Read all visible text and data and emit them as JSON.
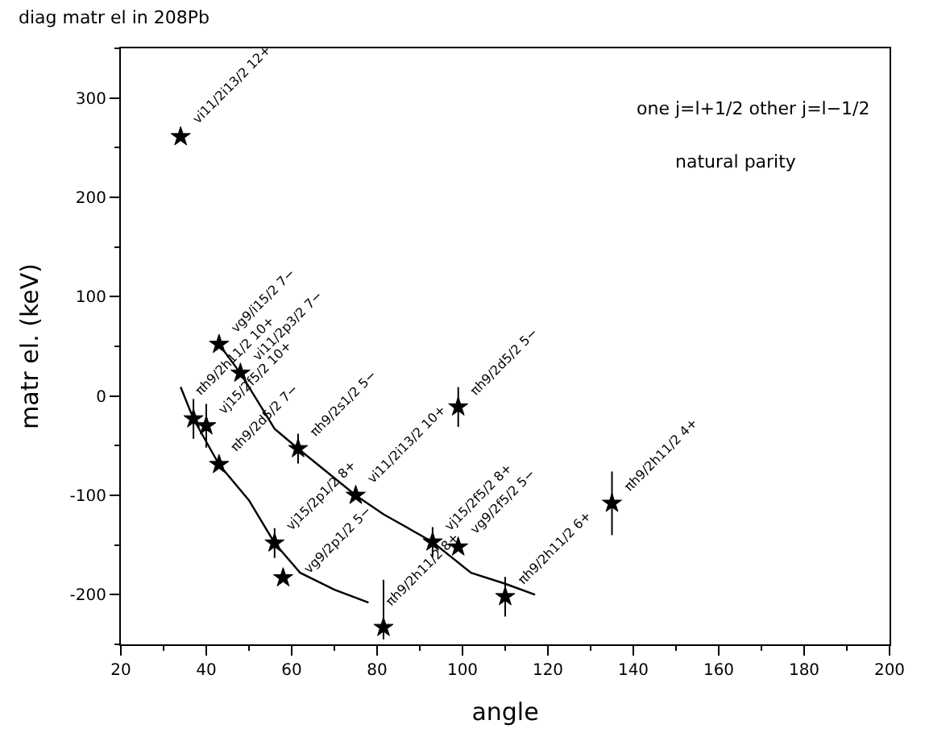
{
  "chart_data": {
    "type": "scatter",
    "title": "diag matr el in 208Pb",
    "xlabel": "angle",
    "ylabel": "matr el. (keV)",
    "xlim": [
      20,
      200
    ],
    "xticks": [
      20,
      40,
      60,
      80,
      100,
      120,
      140,
      160,
      180,
      200
    ],
    "ylim": [
      -250,
      350
    ],
    "yticks": [
      -200,
      -100,
      0,
      100,
      200,
      300
    ],
    "series": [
      {
        "marker": "star",
        "color": "#000000",
        "x": [
          34,
          43,
          37,
          48,
          40,
          43,
          61.5,
          75,
          56,
          58,
          81.5,
          93,
          99,
          110,
          135,
          99
        ],
        "values": [
          261,
          52,
          -23,
          23,
          -30,
          -69,
          -53,
          -100,
          -148,
          -183,
          -233,
          -147,
          -152,
          -202,
          -108,
          -11
        ],
        "errors": [
          null,
          null,
          20,
          null,
          22,
          null,
          15,
          null,
          15,
          null,
          [
            -245,
            -185
          ],
          15,
          null,
          20,
          32,
          20
        ]
      },
      {
        "type": "line",
        "marker": "none",
        "color": "#000000",
        "x": [
          34,
          37,
          43,
          50,
          56,
          62,
          70,
          78
        ],
        "values": [
          9,
          -23,
          -69,
          -105,
          -148,
          -178,
          -195,
          -208
        ]
      },
      {
        "type": "line",
        "marker": "none",
        "color": "#000000",
        "x": [
          43,
          48,
          56,
          61.5,
          75,
          81.5,
          93,
          102,
          110,
          117
        ],
        "values": [
          52,
          23,
          -33,
          -53,
          -100,
          -119,
          -147,
          -178,
          -189,
          -200
        ]
      }
    ],
    "annotations": [
      {
        "text": "vi11/2i13/2 12+",
        "x": 34,
        "y": 261
      },
      {
        "text": "vg9/i15/2 7−",
        "x": 43,
        "y": 52
      },
      {
        "text": "πh9/2h11/2 10+",
        "x": 37,
        "y": -23
      },
      {
        "text": "vi11/2p3/2 7−",
        "x": 48,
        "y": 23
      },
      {
        "text": "vj15/2f5/2 10+",
        "x": 40,
        "y": -30
      },
      {
        "text": "πh9/2d5/2 7−",
        "x": 43,
        "y": -69
      },
      {
        "text": "πh9/2s1/2 5−",
        "x": 61.5,
        "y": -53
      },
      {
        "text": "vi11/2i13/2 10+",
        "x": 75,
        "y": -100
      },
      {
        "text": "vj15/2p1/2 8+",
        "x": 56,
        "y": -148
      },
      {
        "text": "vg9/2p1/2 5−",
        "x": 58,
        "y": -183
      },
      {
        "text": "πh9/2h11/2 8+",
        "x": 81.5,
        "y": -233
      },
      {
        "text": "vj15/2f5/2 8+",
        "x": 93,
        "y": -147
      },
      {
        "text": "vg9/2f5/2 5−",
        "x": 99,
        "y": -152
      },
      {
        "text": "πh9/2h11/2 6+",
        "x": 110,
        "y": -202
      },
      {
        "text": "πh9/2h11/2 4+",
        "x": 135,
        "y": -108
      },
      {
        "text": "πh9/2d5/2 5−",
        "x": 99,
        "y": -11
      },
      "one j=l+1/2 other j=l−1/2",
      "natural parity"
    ]
  }
}
